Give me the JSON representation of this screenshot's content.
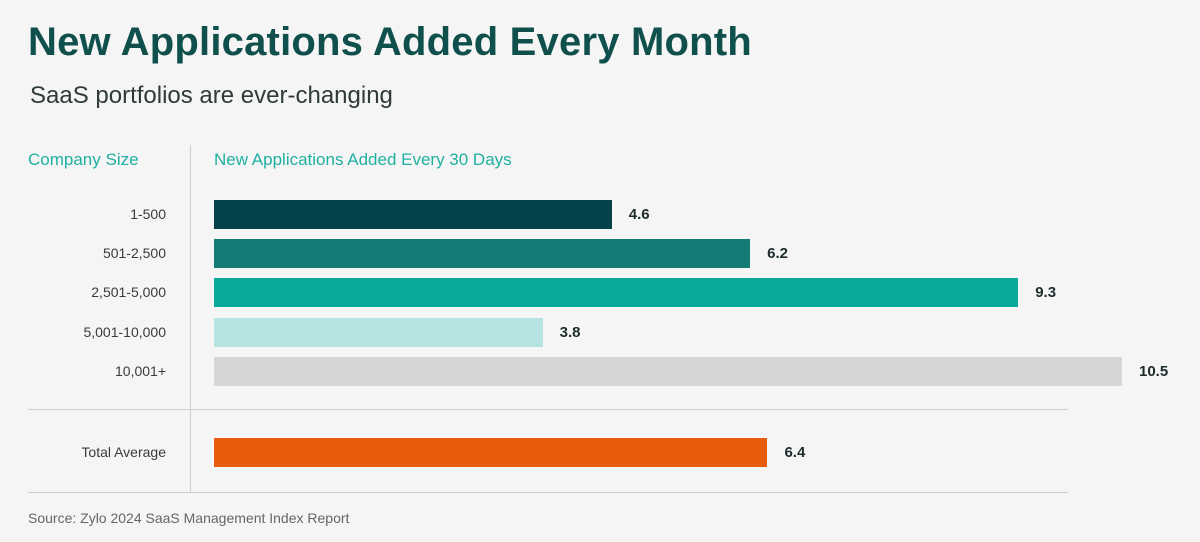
{
  "header": {
    "title": "New Applications Added Every Month",
    "subtitle": "SaaS portfolios are ever-changing"
  },
  "columns": {
    "category_header": "Company Size",
    "value_header": "New Applications Added Every 30 Days"
  },
  "footer": {
    "source": "Source: Zylo 2024 SaaS Management Index Report"
  },
  "colors": {
    "title": "#0f4f4c",
    "header": "#1fb0a2"
  },
  "chart_data": {
    "type": "bar",
    "orientation": "horizontal",
    "xlim": [
      0,
      10.5
    ],
    "grid": false,
    "legend": "none",
    "bars": [
      {
        "label": "1-500",
        "value": 4.6,
        "value_label": "4.6",
        "color": "#06424a"
      },
      {
        "label": "501-2,500",
        "value": 6.2,
        "value_label": "6.2",
        "color": "#147c75"
      },
      {
        "label": "2,501-5,000",
        "value": 9.3,
        "value_label": "9.3",
        "color": "#0aaa9b"
      },
      {
        "label": "5,001-10,000",
        "value": 3.8,
        "value_label": "3.8",
        "color": "#b5e3e1"
      },
      {
        "label": "10,001+",
        "value": 10.5,
        "value_label": "10.5",
        "color": "#d6d6d6"
      }
    ],
    "total": {
      "label": "Total Average",
      "value": 6.4,
      "value_label": "6.4",
      "color": "#e85c0d"
    }
  }
}
